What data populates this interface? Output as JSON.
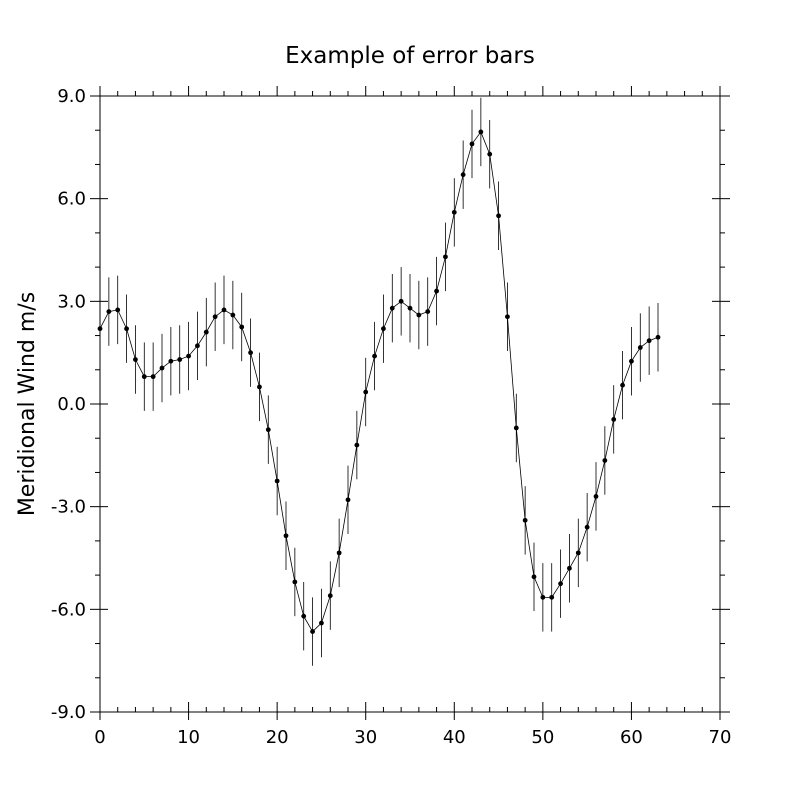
{
  "chart_data": {
    "type": "line",
    "title": "Example of error bars",
    "xlabel": "",
    "ylabel": "Meridional Wind m/s",
    "xlim": [
      0,
      70
    ],
    "ylim": [
      -9,
      9
    ],
    "x_ticks": [
      0,
      10,
      20,
      30,
      40,
      50,
      60,
      70
    ],
    "x_tick_labels": [
      "0",
      "10",
      "20",
      "30",
      "40",
      "50",
      "60",
      "70"
    ],
    "y_ticks": [
      -9,
      -6,
      -3,
      0,
      3,
      6,
      9
    ],
    "y_tick_labels": [
      "-9.0",
      "-6.0",
      "-3.0",
      "0.0",
      "3.0",
      "6.0",
      "9.0"
    ],
    "grid": false,
    "error": 1.0,
    "series": [
      {
        "x": [
          0,
          1,
          2,
          3,
          4,
          5,
          6,
          7,
          8,
          9,
          10,
          11,
          12,
          13,
          14,
          15,
          16,
          17,
          18,
          19,
          20,
          21,
          22,
          23,
          24,
          25,
          26,
          27,
          28,
          29,
          30,
          31,
          32,
          33,
          34,
          35,
          36,
          37,
          38,
          39,
          40,
          41,
          42,
          43,
          44,
          45,
          46,
          47,
          48,
          49,
          50,
          51,
          52,
          53,
          54,
          55,
          56,
          57,
          58,
          59,
          60,
          61,
          62,
          63
        ],
        "y": [
          2.2,
          2.7,
          2.75,
          2.2,
          1.3,
          0.8,
          0.8,
          1.05,
          1.25,
          1.3,
          1.4,
          1.7,
          2.1,
          2.55,
          2.75,
          2.6,
          2.25,
          1.5,
          0.5,
          -0.75,
          -2.25,
          -3.85,
          -5.2,
          -6.2,
          -6.65,
          -6.4,
          -5.6,
          -4.35,
          -2.8,
          -1.2,
          0.35,
          1.4,
          2.2,
          2.8,
          3.0,
          2.8,
          2.6,
          2.7,
          3.3,
          4.3,
          5.6,
          6.7,
          7.6,
          7.95,
          7.3,
          5.5,
          2.55,
          -0.7,
          -3.4,
          -5.05,
          -5.65,
          -5.65,
          -5.25,
          -4.8,
          -4.35,
          -3.6,
          -2.7,
          -1.65,
          -0.45,
          0.55,
          1.25,
          1.65,
          1.85,
          1.95
        ]
      }
    ]
  }
}
